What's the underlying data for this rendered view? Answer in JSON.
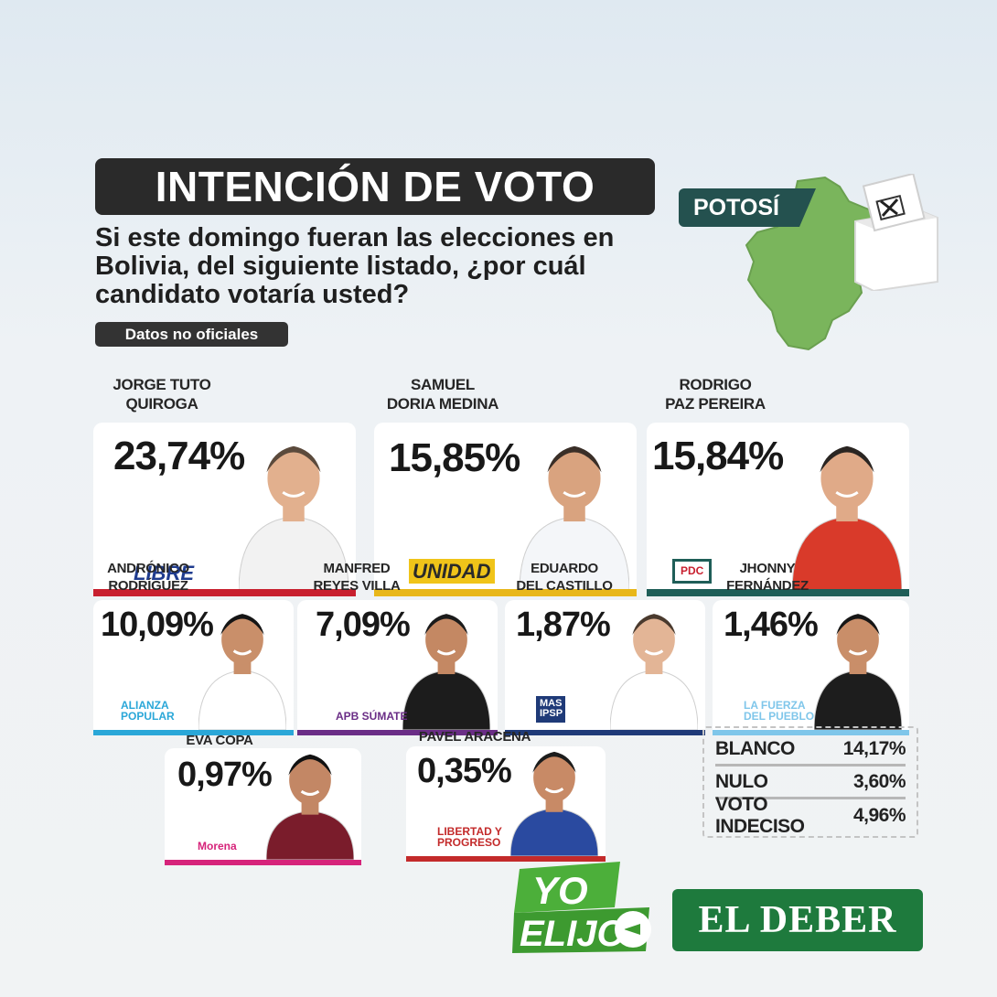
{
  "header": {
    "title": "INTENCIÓN DE VOTO",
    "question": "Si este domingo fueran las elecciones en Bolivia, del siguiente listado, ¿por cuál candidato votaría usted?",
    "disclaimer": "Datos no oficiales",
    "region": "POTOSÍ"
  },
  "chart_data": {
    "type": "bar",
    "categories": [
      "JORGE TUTO QUIROGA",
      "SAMUEL DORIA MEDINA",
      "RODRIGO PAZ PEREIRA",
      "ANDRÓNICO RODRÍGUEZ",
      "MANFRED REYES VILLA",
      "EDUARDO DEL CASTILLO",
      "JHONNY FERNÁNDEZ",
      "EVA COPA",
      "PAVEL ARACENA"
    ],
    "values": [
      23.74,
      15.85,
      15.84,
      10.09,
      7.09,
      1.87,
      1.46,
      0.97,
      0.35
    ],
    "labels": [
      "23,74%",
      "15,85%",
      "15,84%",
      "10,09%",
      "7,09%",
      "1,87%",
      "1,46%",
      "0,97%",
      "0,35%"
    ],
    "name_lines": [
      [
        "JORGE TUTO",
        "QUIROGA"
      ],
      [
        "SAMUEL",
        "DORIA MEDINA"
      ],
      [
        "RODRIGO",
        "PAZ PEREIRA"
      ],
      [
        "ANDRÓNICO",
        "RODRÍGUEZ"
      ],
      [
        "MANFRED",
        "REYES VILLA"
      ],
      [
        "EDUARDO",
        "DEL CASTILLO"
      ],
      [
        "JHONNY",
        "FERNÁNDEZ"
      ],
      [
        "EVA COPA"
      ],
      [
        "PAVEL ARACENA"
      ]
    ],
    "parties": [
      "LIBRE",
      "UNIDAD",
      "PDC",
      "ALIANZA POPULAR",
      "APB SÚMATE",
      "MAS IPSP",
      "LA FUERZA DEL PUEBLO",
      "Morena",
      "LIBERTAD Y PROGRESO"
    ],
    "party_colors": [
      "#c8202f",
      "#e8b71a",
      "#1f5e58",
      "#2aa7d8",
      "#6a2d86",
      "#1f3a78",
      "#7fc6ea",
      "#d6237a",
      "#c32a2a"
    ],
    "others": [
      {
        "label": "BLANCO",
        "value": "14,17%"
      },
      {
        "label": "NULO",
        "value": "3,60%"
      },
      {
        "label": "VOTO INDECISO",
        "value": "4,96%"
      }
    ]
  },
  "branding": {
    "yo_elijo_line1": "YO",
    "yo_elijo_line2": "ELIJO",
    "el_deber": "EL DEBER"
  }
}
